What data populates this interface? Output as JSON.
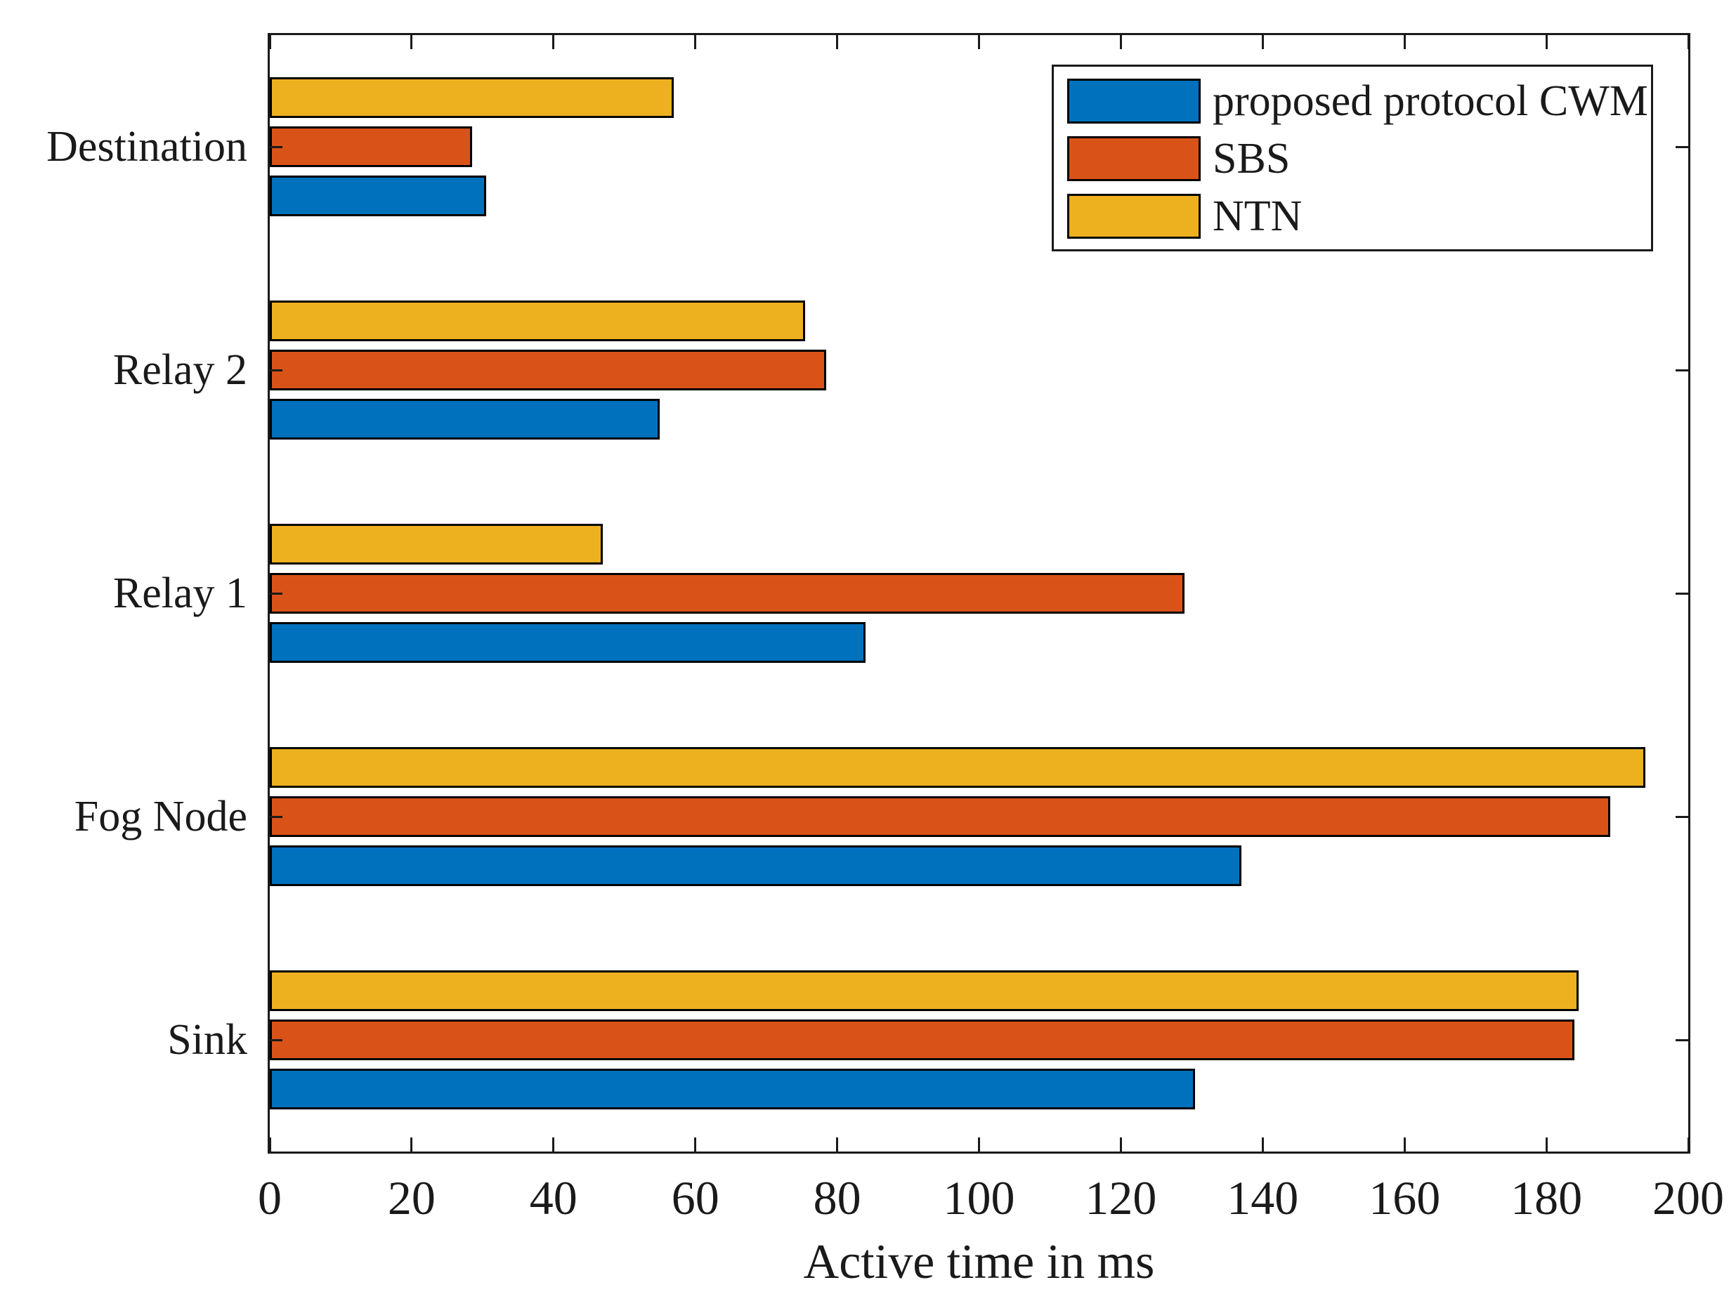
{
  "figure": {
    "background": "#ffffff",
    "axes_color": "#1a1a1a",
    "bar_edge_color": "#000000"
  },
  "chart_data": {
    "type": "bar",
    "orientation": "horizontal",
    "title": "",
    "xlabel": "Active time in ms",
    "ylabel": "",
    "xlim": [
      0,
      200
    ],
    "xticks": [
      0,
      20,
      40,
      60,
      80,
      100,
      120,
      140,
      160,
      180,
      200
    ],
    "grid": false,
    "legend_position": "northeast",
    "categories": [
      "Sink",
      "Fog Node",
      "Relay 1",
      "Relay 2",
      "Destination"
    ],
    "series": [
      {
        "name": "proposed protocol CWM",
        "color": "#0072BD",
        "values": [
          130.5,
          137,
          84,
          55,
          30.5
        ]
      },
      {
        "name": "SBS",
        "color": "#D95319",
        "values": [
          184,
          189,
          129,
          78.5,
          28.5
        ]
      },
      {
        "name": "NTN",
        "color": "#EDB120",
        "values": [
          184.5,
          194,
          47,
          75.5,
          57
        ]
      }
    ]
  }
}
